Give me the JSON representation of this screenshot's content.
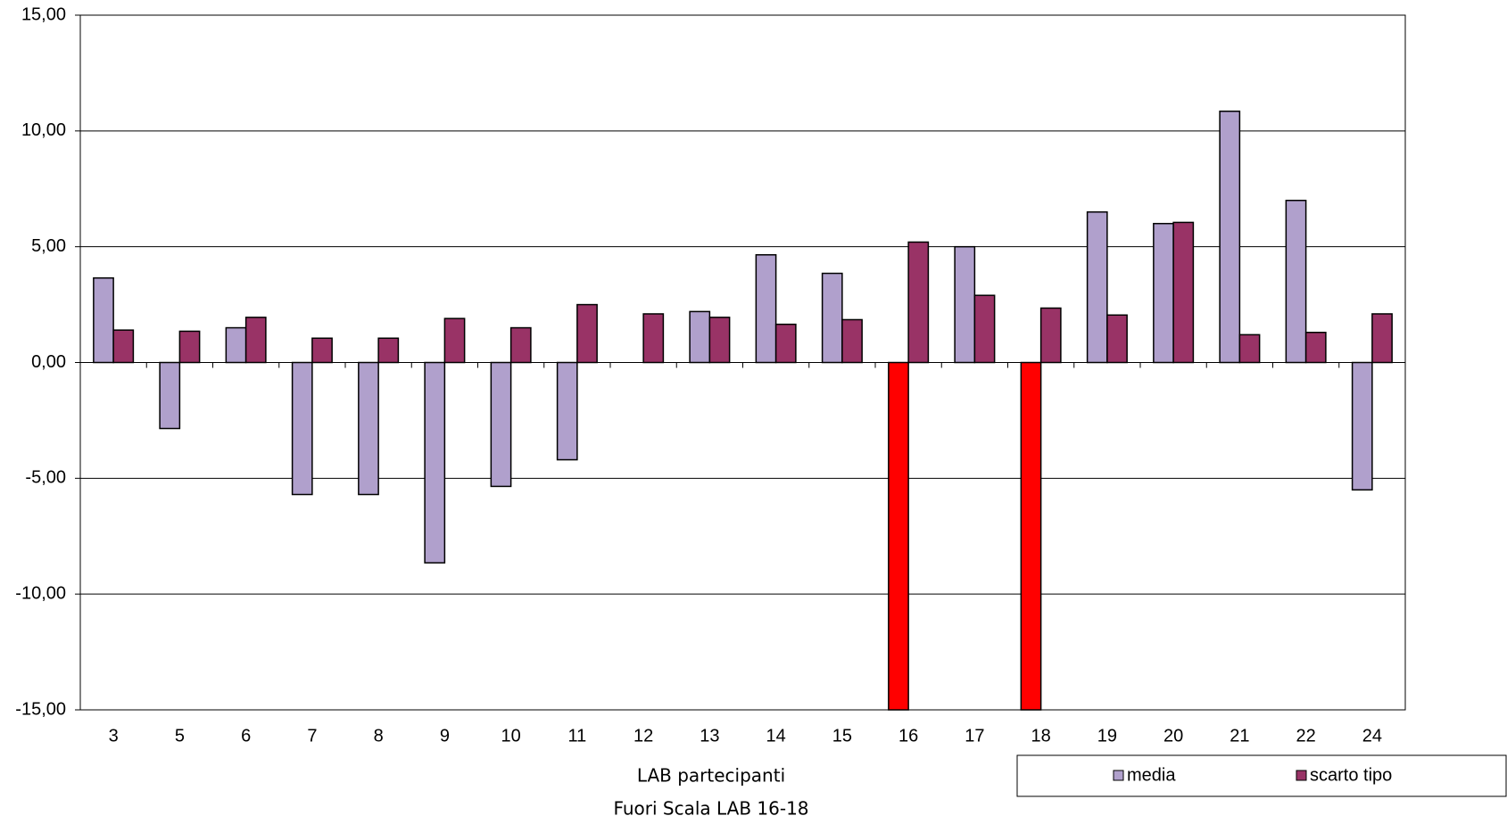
{
  "chart_data": {
    "type": "bar",
    "x_label": "LAB partecipanti",
    "note": "Fuori Scala LAB 16-18",
    "categories": [
      "3",
      "5",
      "6",
      "7",
      "8",
      "9",
      "10",
      "11",
      "12",
      "13",
      "14",
      "15",
      "16",
      "17",
      "18",
      "19",
      "20",
      "21",
      "22",
      "24"
    ],
    "series": [
      {
        "name": "media",
        "color": "#b0a0cc",
        "colors": [
          "#b0a0cc",
          "#b0a0cc",
          "#b0a0cc",
          "#b0a0cc",
          "#b0a0cc",
          "#b0a0cc",
          "#b0a0cc",
          "#b0a0cc",
          "#b0a0cc",
          "#b0a0cc",
          "#b0a0cc",
          "#b0a0cc",
          "#ff0000",
          "#b0a0cc",
          "#ff0000",
          "#b0a0cc",
          "#b0a0cc",
          "#b0a0cc",
          "#b0a0cc",
          "#b0a0cc"
        ],
        "values": [
          3.65,
          -2.85,
          1.5,
          -5.7,
          -5.7,
          -8.65,
          -5.35,
          -4.2,
          null,
          2.2,
          4.65,
          3.85,
          -15,
          5.0,
          -15,
          6.5,
          6.0,
          10.85,
          7.0,
          -5.5
        ]
      },
      {
        "name": "scarto tipo",
        "color": "#993366",
        "values": [
          1.4,
          1.35,
          1.95,
          1.05,
          1.05,
          1.9,
          1.5,
          2.5,
          2.1,
          1.95,
          1.65,
          1.85,
          5.2,
          2.9,
          2.35,
          2.05,
          6.05,
          1.2,
          1.3,
          2.1
        ]
      }
    ],
    "ylim": [
      -15,
      15
    ],
    "yticks": [
      {
        "value": -15,
        "label": "-15,00"
      },
      {
        "value": -10,
        "label": "-10,00"
      },
      {
        "value": -5,
        "label": "-5,00"
      },
      {
        "value": 0,
        "label": "0,00"
      },
      {
        "value": 5,
        "label": "5,00"
      },
      {
        "value": 10,
        "label": "10,00"
      },
      {
        "value": 15,
        "label": "15,00"
      }
    ],
    "grid": true,
    "legend": "bottom-right"
  }
}
